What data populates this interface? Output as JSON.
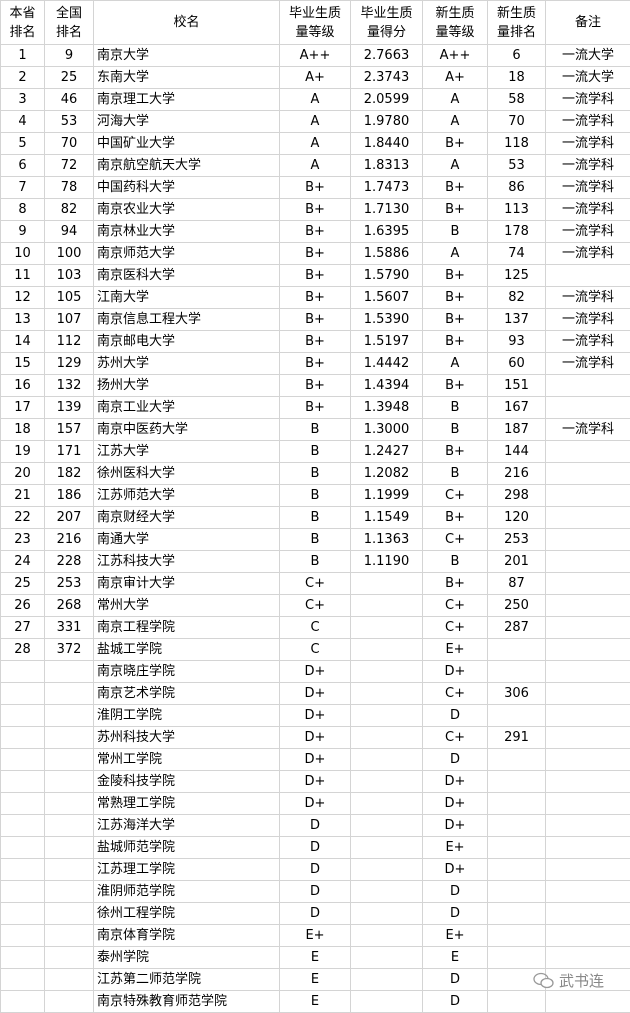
{
  "headers": [
    "本省\n排名",
    "全国\n排名",
    "校名",
    "毕业生质\n量等级",
    "毕业生质\n量得分",
    "新生质\n量等级",
    "新生质\n量排名",
    "备注"
  ],
  "rows": [
    [
      "1",
      "9",
      "南京大学",
      "A++",
      "2.7663",
      "A++",
      "6",
      "一流大学"
    ],
    [
      "2",
      "25",
      "东南大学",
      "A+",
      "2.3743",
      "A+",
      "18",
      "一流大学"
    ],
    [
      "3",
      "46",
      "南京理工大学",
      "A",
      "2.0599",
      "A",
      "58",
      "一流学科"
    ],
    [
      "4",
      "53",
      "河海大学",
      "A",
      "1.9780",
      "A",
      "70",
      "一流学科"
    ],
    [
      "5",
      "70",
      "中国矿业大学",
      "A",
      "1.8440",
      "B+",
      "118",
      "一流学科"
    ],
    [
      "6",
      "72",
      "南京航空航天大学",
      "A",
      "1.8313",
      "A",
      "53",
      "一流学科"
    ],
    [
      "7",
      "78",
      "中国药科大学",
      "B+",
      "1.7473",
      "B+",
      "86",
      "一流学科"
    ],
    [
      "8",
      "82",
      "南京农业大学",
      "B+",
      "1.7130",
      "B+",
      "113",
      "一流学科"
    ],
    [
      "9",
      "94",
      "南京林业大学",
      "B+",
      "1.6395",
      "B",
      "178",
      "一流学科"
    ],
    [
      "10",
      "100",
      "南京师范大学",
      "B+",
      "1.5886",
      "A",
      "74",
      "一流学科"
    ],
    [
      "11",
      "103",
      "南京医科大学",
      "B+",
      "1.5790",
      "B+",
      "125",
      ""
    ],
    [
      "12",
      "105",
      "江南大学",
      "B+",
      "1.5607",
      "B+",
      "82",
      "一流学科"
    ],
    [
      "13",
      "107",
      "南京信息工程大学",
      "B+",
      "1.5390",
      "B+",
      "137",
      "一流学科"
    ],
    [
      "14",
      "112",
      "南京邮电大学",
      "B+",
      "1.5197",
      "B+",
      "93",
      "一流学科"
    ],
    [
      "15",
      "129",
      "苏州大学",
      "B+",
      "1.4442",
      "A",
      "60",
      "一流学科"
    ],
    [
      "16",
      "132",
      "扬州大学",
      "B+",
      "1.4394",
      "B+",
      "151",
      ""
    ],
    [
      "17",
      "139",
      "南京工业大学",
      "B+",
      "1.3948",
      "B",
      "167",
      ""
    ],
    [
      "18",
      "157",
      "南京中医药大学",
      "B",
      "1.3000",
      "B",
      "187",
      "一流学科"
    ],
    [
      "19",
      "171",
      "江苏大学",
      "B",
      "1.2427",
      "B+",
      "144",
      ""
    ],
    [
      "20",
      "182",
      "徐州医科大学",
      "B",
      "1.2082",
      "B",
      "216",
      ""
    ],
    [
      "21",
      "186",
      "江苏师范大学",
      "B",
      "1.1999",
      "C+",
      "298",
      ""
    ],
    [
      "22",
      "207",
      "南京财经大学",
      "B",
      "1.1549",
      "B+",
      "120",
      ""
    ],
    [
      "23",
      "216",
      "南通大学",
      "B",
      "1.1363",
      "C+",
      "253",
      ""
    ],
    [
      "24",
      "228",
      "江苏科技大学",
      "B",
      "1.1190",
      "B",
      "201",
      ""
    ],
    [
      "25",
      "253",
      "南京审计大学",
      "C+",
      "",
      "B+",
      "87",
      ""
    ],
    [
      "26",
      "268",
      "常州大学",
      "C+",
      "",
      "C+",
      "250",
      ""
    ],
    [
      "27",
      "331",
      "南京工程学院",
      "C",
      "",
      "C+",
      "287",
      ""
    ],
    [
      "28",
      "372",
      "盐城工学院",
      "C",
      "",
      "E+",
      "",
      ""
    ],
    [
      "",
      "",
      "南京晓庄学院",
      "D+",
      "",
      "D+",
      "",
      ""
    ],
    [
      "",
      "",
      "南京艺术学院",
      "D+",
      "",
      "C+",
      "306",
      ""
    ],
    [
      "",
      "",
      "淮阴工学院",
      "D+",
      "",
      "D",
      "",
      ""
    ],
    [
      "",
      "",
      "苏州科技大学",
      "D+",
      "",
      "C+",
      "291",
      ""
    ],
    [
      "",
      "",
      "常州工学院",
      "D+",
      "",
      "D",
      "",
      ""
    ],
    [
      "",
      "",
      "金陵科技学院",
      "D+",
      "",
      "D+",
      "",
      ""
    ],
    [
      "",
      "",
      "常熟理工学院",
      "D+",
      "",
      "D+",
      "",
      ""
    ],
    [
      "",
      "",
      "江苏海洋大学",
      "D",
      "",
      "D+",
      "",
      ""
    ],
    [
      "",
      "",
      "盐城师范学院",
      "D",
      "",
      "E+",
      "",
      ""
    ],
    [
      "",
      "",
      "江苏理工学院",
      "D",
      "",
      "D+",
      "",
      ""
    ],
    [
      "",
      "",
      "淮阴师范学院",
      "D",
      "",
      "D",
      "",
      ""
    ],
    [
      "",
      "",
      "徐州工程学院",
      "D",
      "",
      "D",
      "",
      ""
    ],
    [
      "",
      "",
      "南京体育学院",
      "E+",
      "",
      "E+",
      "",
      ""
    ],
    [
      "",
      "",
      "泰州学院",
      "E",
      "",
      "E",
      "",
      ""
    ],
    [
      "",
      "",
      "江苏第二师范学院",
      "E",
      "",
      "D",
      "",
      ""
    ],
    [
      "",
      "",
      "南京特殊教育师范学院",
      "E",
      "",
      "D",
      "",
      ""
    ]
  ],
  "watermark": {
    "text": "武书连",
    "icon": "wechat-official-account-icon"
  },
  "colors": {
    "grid": "#d4d4d4",
    "text": "#000000",
    "watermark": "#888888"
  }
}
